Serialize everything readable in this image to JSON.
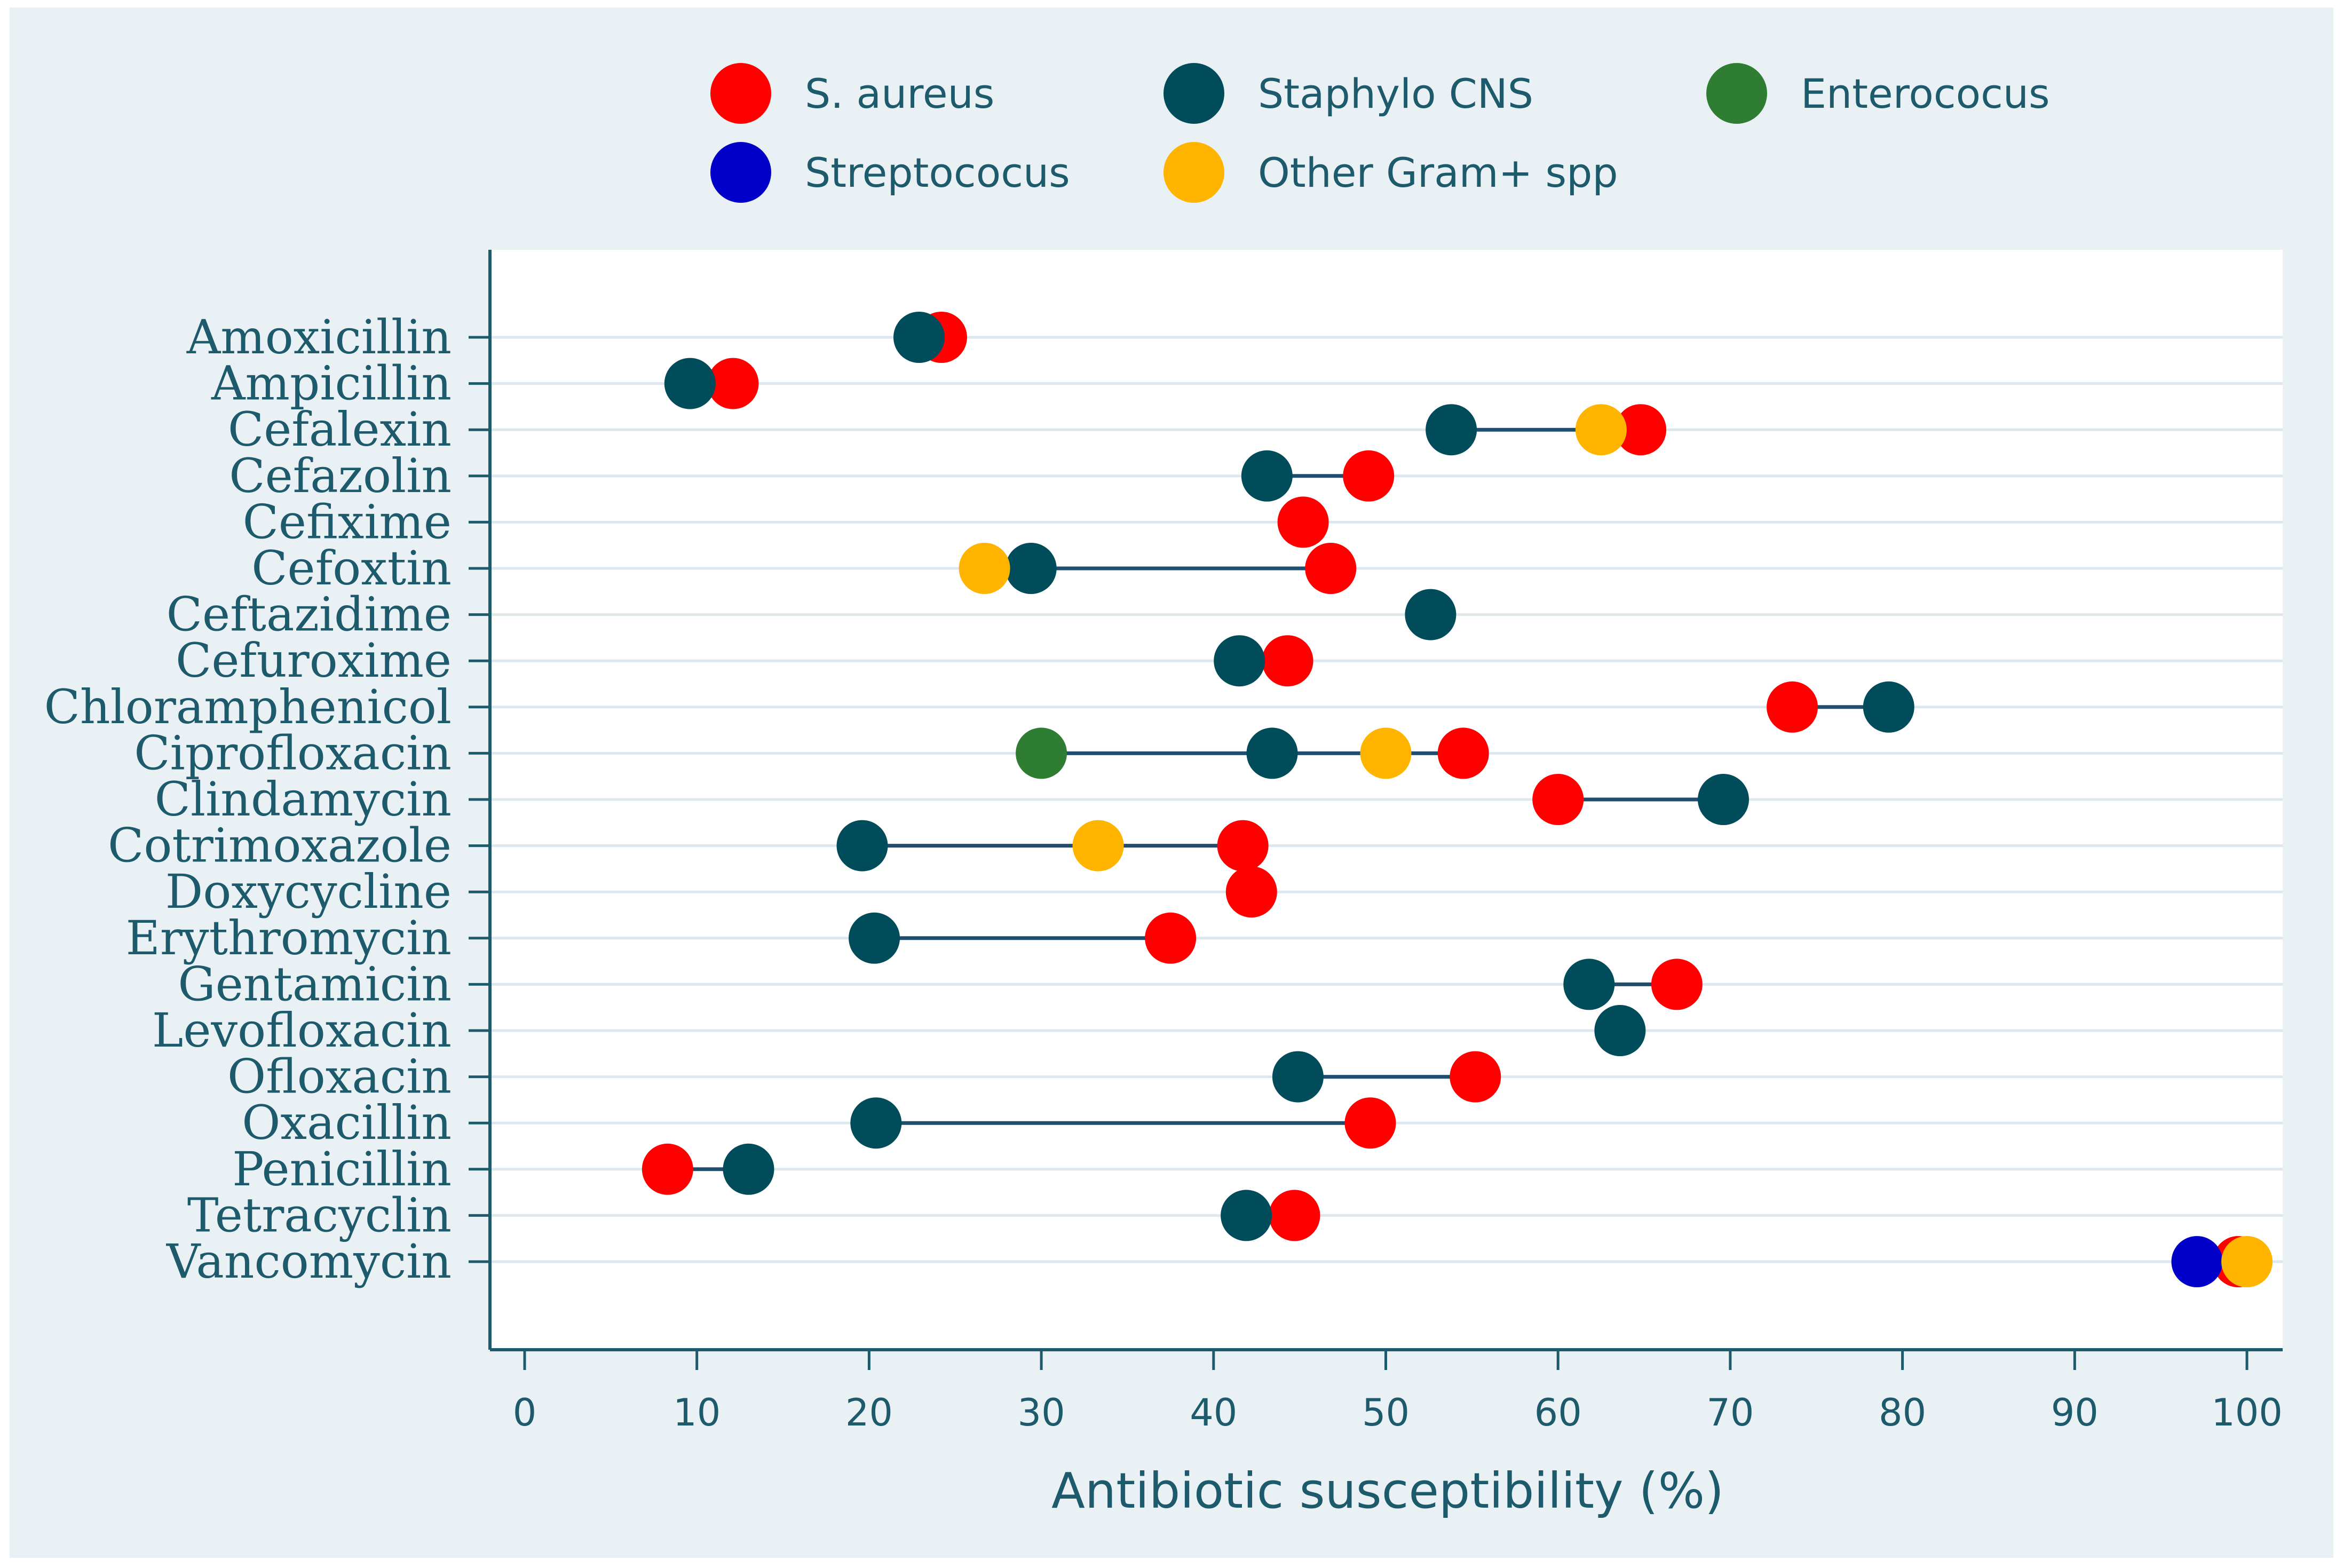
{
  "chart_data": {
    "type": "scatter",
    "title": "",
    "xlabel": "Antibiotic susceptibility (%)",
    "ylabel": "",
    "xlim": [
      0,
      100
    ],
    "xticks": [
      0,
      10,
      20,
      30,
      40,
      50,
      60,
      70,
      80,
      90,
      100
    ],
    "categories": [
      "Amoxicillin",
      "Ampicillin",
      "Cefalexin",
      "Cefazolin",
      "Cefixime",
      "Cefoxtin",
      "Ceftazidime",
      "Cefuroxime",
      "Chloramphenicol",
      "Ciprofloxacin",
      "Clindamycin",
      "Cotrimoxazole",
      "Doxycycline",
      "Erythromycin",
      "Gentamicin",
      "Levofloxacin",
      "Ofloxacin",
      "Oxacillin",
      "Penicillin",
      "Tetracyclin",
      "Vancomycin"
    ],
    "legend_position": "top",
    "series": [
      {
        "name": "S. aureus",
        "color": "#ff0000",
        "values": [
          24.2,
          12.1,
          64.8,
          49.0,
          45.2,
          46.8,
          null,
          44.3,
          73.6,
          54.5,
          60.0,
          41.7,
          42.2,
          37.5,
          66.9,
          null,
          55.2,
          49.1,
          8.3,
          44.7,
          99.5
        ]
      },
      {
        "name": "Staphylo CNS",
        "color": "#004c5a",
        "values": [
          22.9,
          9.6,
          53.8,
          43.1,
          null,
          29.4,
          52.6,
          41.5,
          79.2,
          43.4,
          69.6,
          19.6,
          null,
          20.3,
          61.8,
          63.6,
          44.9,
          20.4,
          13.0,
          41.9,
          null
        ]
      },
      {
        "name": "Enterococus",
        "color": "#2e7d32",
        "values": [
          null,
          null,
          null,
          null,
          null,
          null,
          null,
          null,
          null,
          30.0,
          null,
          null,
          null,
          null,
          null,
          null,
          null,
          null,
          null,
          null,
          null
        ]
      },
      {
        "name": "Streptococus",
        "color": "#0000c8",
        "values": [
          null,
          null,
          null,
          null,
          null,
          null,
          null,
          null,
          null,
          null,
          null,
          null,
          null,
          null,
          null,
          null,
          null,
          null,
          null,
          null,
          97.1
        ]
      },
      {
        "name": "Other Gram+ spp",
        "color": "#ffb400",
        "values": [
          null,
          null,
          62.5,
          null,
          null,
          26.7,
          null,
          null,
          null,
          50.0,
          null,
          33.3,
          null,
          null,
          null,
          null,
          null,
          null,
          null,
          null,
          100.0
        ]
      }
    ]
  }
}
